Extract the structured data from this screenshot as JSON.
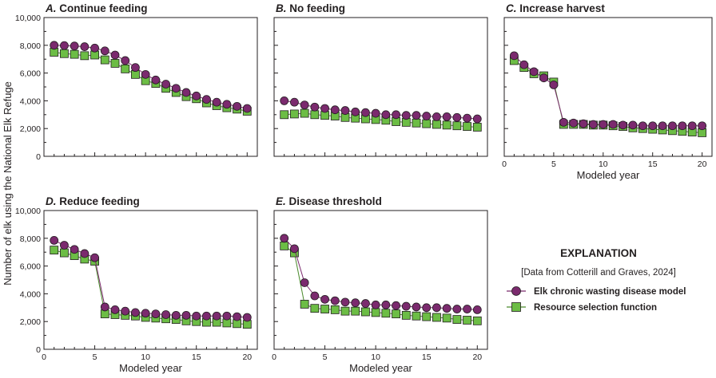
{
  "chart_data": [
    {
      "type": "line",
      "title_letter": "A.",
      "title_text": "Continue feeding",
      "xlabel": "",
      "ylabel": "Number of elk using the National Elk Refuge",
      "xlim": [
        0,
        21
      ],
      "ylim": [
        0,
        10000
      ],
      "x": [
        1,
        2,
        3,
        4,
        5,
        6,
        7,
        8,
        9,
        10,
        11,
        12,
        13,
        14,
        15,
        16,
        17,
        18,
        19,
        20
      ],
      "series": [
        {
          "name": "Elk chronic wasting disease model",
          "values": [
            8000,
            7980,
            7950,
            7900,
            7800,
            7600,
            7300,
            6900,
            6400,
            5900,
            5500,
            5200,
            4900,
            4600,
            4350,
            4100,
            3900,
            3750,
            3600,
            3450
          ]
        },
        {
          "name": "Resource selection function",
          "values": [
            7500,
            7400,
            7350,
            7250,
            7300,
            6950,
            6700,
            6300,
            5900,
            5450,
            5250,
            4900,
            4600,
            4300,
            4150,
            3850,
            3650,
            3500,
            3400,
            3250
          ]
        }
      ]
    },
    {
      "type": "line",
      "title_letter": "B.",
      "title_text": "No feeding",
      "xlabel": "",
      "ylabel": "",
      "xlim": [
        0,
        21
      ],
      "ylim": [
        0,
        10000
      ],
      "x": [
        1,
        2,
        3,
        4,
        5,
        6,
        7,
        8,
        9,
        10,
        11,
        12,
        13,
        14,
        15,
        16,
        17,
        18,
        19,
        20
      ],
      "series": [
        {
          "name": "Elk chronic wasting disease model",
          "values": [
            4000,
            3900,
            3700,
            3550,
            3450,
            3350,
            3300,
            3200,
            3150,
            3100,
            3000,
            3000,
            2950,
            2950,
            2900,
            2850,
            2850,
            2800,
            2750,
            2700
          ]
        },
        {
          "name": "Resource selection function",
          "values": [
            3000,
            3050,
            3100,
            3000,
            2950,
            2900,
            2800,
            2750,
            2700,
            2650,
            2600,
            2500,
            2450,
            2400,
            2350,
            2300,
            2250,
            2200,
            2150,
            2100
          ]
        }
      ]
    },
    {
      "type": "line",
      "title_letter": "C.",
      "title_text": "Increase harvest",
      "xlabel": "Modeled year",
      "ylabel": "",
      "xlim": [
        0,
        21
      ],
      "ylim": [
        0,
        10000
      ],
      "x": [
        1,
        2,
        3,
        4,
        5,
        6,
        7,
        8,
        9,
        10,
        11,
        12,
        13,
        14,
        15,
        16,
        17,
        18,
        19,
        20
      ],
      "series": [
        {
          "name": "Elk chronic wasting disease model",
          "values": [
            7250,
            6600,
            6100,
            5650,
            5150,
            2450,
            2400,
            2350,
            2300,
            2300,
            2300,
            2250,
            2250,
            2200,
            2200,
            2200,
            2200,
            2200,
            2200,
            2200
          ]
        },
        {
          "name": "Resource selection function",
          "values": [
            6900,
            6400,
            5950,
            5800,
            5350,
            2300,
            2300,
            2300,
            2250,
            2250,
            2200,
            2150,
            2050,
            2000,
            1950,
            1900,
            1850,
            1800,
            1750,
            1700
          ]
        }
      ]
    },
    {
      "type": "line",
      "title_letter": "D.",
      "title_text": "Reduce feeding",
      "xlabel": "Modeled year",
      "ylabel": "",
      "xlim": [
        0,
        21
      ],
      "ylim": [
        0,
        10000
      ],
      "x": [
        1,
        2,
        3,
        4,
        5,
        6,
        7,
        8,
        9,
        10,
        11,
        12,
        13,
        14,
        15,
        16,
        17,
        18,
        19,
        20
      ],
      "series": [
        {
          "name": "Elk chronic wasting disease model",
          "values": [
            7850,
            7500,
            7200,
            6900,
            6600,
            3050,
            2850,
            2750,
            2650,
            2600,
            2550,
            2500,
            2450,
            2450,
            2400,
            2400,
            2400,
            2400,
            2350,
            2300
          ]
        },
        {
          "name": "Resource selection function",
          "values": [
            7150,
            6950,
            6750,
            6500,
            6350,
            2550,
            2500,
            2450,
            2400,
            2300,
            2250,
            2200,
            2150,
            2050,
            2000,
            1950,
            1950,
            1900,
            1850,
            1800
          ]
        }
      ]
    },
    {
      "type": "line",
      "title_letter": "E.",
      "title_text": "Disease threshold",
      "xlabel": "Modeled year",
      "ylabel": "",
      "xlim": [
        0,
        21
      ],
      "ylim": [
        0,
        10000
      ],
      "x": [
        1,
        2,
        3,
        4,
        5,
        6,
        7,
        8,
        9,
        10,
        11,
        12,
        13,
        14,
        15,
        16,
        17,
        18,
        19,
        20
      ],
      "series": [
        {
          "name": "Elk chronic wasting disease model",
          "values": [
            8000,
            7250,
            4800,
            3850,
            3600,
            3500,
            3400,
            3350,
            3300,
            3200,
            3200,
            3150,
            3100,
            3050,
            3000,
            3000,
            2950,
            2900,
            2900,
            2850
          ]
        },
        {
          "name": "Resource selection function",
          "values": [
            7450,
            6950,
            3250,
            2950,
            2900,
            2850,
            2750,
            2750,
            2700,
            2650,
            2600,
            2550,
            2450,
            2400,
            2350,
            2300,
            2250,
            2150,
            2100,
            2050
          ]
        }
      ]
    }
  ],
  "y_ticks": [
    0,
    2000,
    4000,
    6000,
    8000,
    10000
  ],
  "x_ticks": [
    0,
    5,
    10,
    15,
    20
  ],
  "explanation": {
    "title": "EXPLANATION",
    "note": "[Data from Cotterill and Graves, 2024]",
    "items": [
      {
        "label": "Elk chronic wasting disease model",
        "marker": "circle",
        "fill": "#7b2a6e",
        "line": "#7b2a6e"
      },
      {
        "label": "Resource selection function",
        "marker": "square",
        "fill": "#6cbd45",
        "line": "#4a8a2c"
      }
    ]
  }
}
